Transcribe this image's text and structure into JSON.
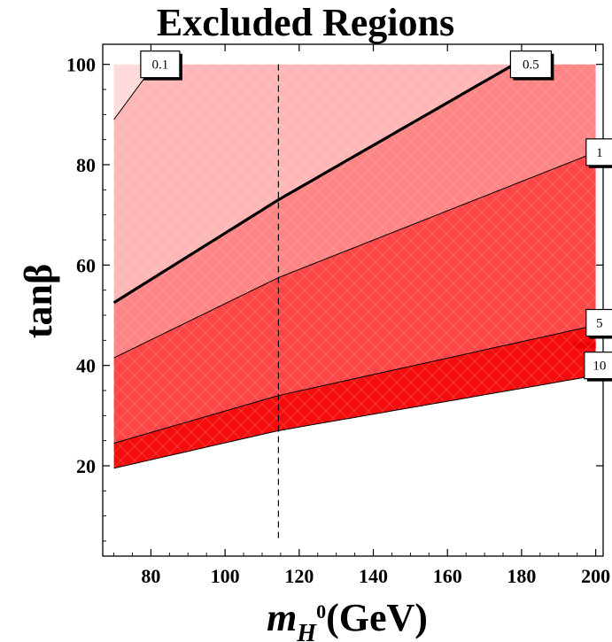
{
  "chart_data": {
    "type": "area",
    "title": "Excluded Regions",
    "xlabel_main": "m",
    "xlabel_sub": "H",
    "xlabel_sup": "0",
    "xlabel_unit": "(GeV)",
    "ylabel": "tanβ",
    "xlim": [
      67,
      202
    ],
    "ylim": [
      2,
      104
    ],
    "xticks": [
      80,
      100,
      120,
      140,
      160,
      180,
      200
    ],
    "yticks": [
      20,
      40,
      60,
      80,
      100
    ],
    "data_x_range": [
      70,
      200
    ],
    "data_y_max": 100,
    "reference_line_x": 114.4,
    "contours": [
      {
        "label": "0.1",
        "points": [
          [
            70,
            89
          ],
          [
            81,
            100
          ]
        ]
      },
      {
        "label": "0.5",
        "points": [
          [
            70,
            52.5
          ],
          [
            114.4,
            73
          ],
          [
            178,
            100
          ]
        ]
      },
      {
        "label": "1",
        "points": [
          [
            70,
            41.5
          ],
          [
            114.4,
            57.5
          ],
          [
            200,
            82.5
          ]
        ]
      },
      {
        "label": "5",
        "points": [
          [
            70,
            24.5
          ],
          [
            114.4,
            34
          ],
          [
            200,
            48
          ]
        ]
      },
      {
        "label": "10",
        "points": [
          [
            70,
            19.5
          ],
          [
            114.4,
            27
          ],
          [
            200,
            38
          ]
        ]
      }
    ],
    "colors": {
      "region_lightest": "#ffdada",
      "region_0_5": "#ffb6b6",
      "region_1": "#ff8585",
      "region_5": "#ff4646",
      "region_10": "#f50d0d",
      "edge_strip": "#ee0000"
    }
  }
}
